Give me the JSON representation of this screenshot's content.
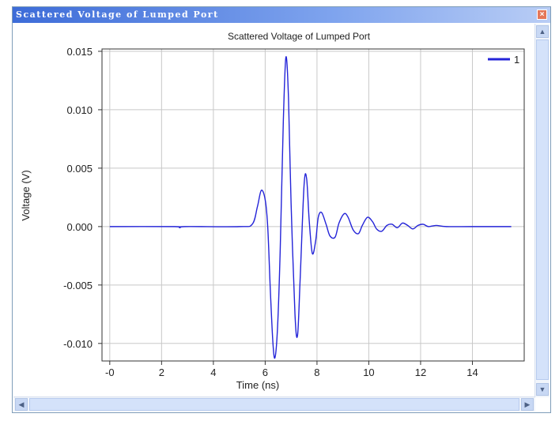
{
  "window": {
    "title": "Scattered Voltage of Lumped Port",
    "close_glyph": "×",
    "close_icon": "close-icon",
    "scroll_up_glyph": "▲",
    "scroll_down_glyph": "▼",
    "scroll_left_glyph": "◀",
    "scroll_right_glyph": "▶"
  },
  "chart_data": {
    "type": "line",
    "title": "Scattered Voltage of Lumped Port",
    "xlabel": "Time (ns)",
    "ylabel": "Voltage (V)",
    "xlim": [
      -0.3,
      16
    ],
    "ylim": [
      -0.0115,
      0.0152
    ],
    "xticks": [
      0,
      2,
      4,
      6,
      8,
      10,
      12,
      14
    ],
    "xtick_labels": [
      "-0",
      "2",
      "4",
      "6",
      "8",
      "10",
      "12",
      "14"
    ],
    "yticks": [
      0.015,
      0.01,
      0.005,
      0.0,
      -0.005,
      -0.01
    ],
    "ytick_labels": [
      "0.015",
      "0.010",
      "0.005",
      "0.000",
      "-0.005",
      "-0.010"
    ],
    "grid": true,
    "legend_position": "top-right",
    "series": [
      {
        "name": "1",
        "color": "#2424d8",
        "x": [
          0,
          2.5,
          2.7,
          2.9,
          5.0,
          5.5,
          5.7,
          5.85,
          6.0,
          6.1,
          6.2,
          6.3,
          6.38,
          6.48,
          6.58,
          6.7,
          6.8,
          6.9,
          7.0,
          7.15,
          7.25,
          7.35,
          7.5,
          7.6,
          7.7,
          7.82,
          7.95,
          8.05,
          8.18,
          8.35,
          8.5,
          8.7,
          8.85,
          9.05,
          9.2,
          9.4,
          9.6,
          9.75,
          9.95,
          10.15,
          10.3,
          10.5,
          10.7,
          10.9,
          11.1,
          11.3,
          11.5,
          11.7,
          11.9,
          12.1,
          12.3,
          12.6,
          13.0,
          14.0,
          15.5
        ],
        "y": [
          0.0,
          0.0,
          -0.0001,
          0.0,
          0.0,
          0.0002,
          0.0017,
          0.0031,
          0.0023,
          -0.0001,
          -0.0055,
          -0.01,
          -0.0112,
          -0.0085,
          -0.002,
          0.009,
          0.0145,
          0.011,
          0.002,
          -0.0075,
          -0.0093,
          -0.0045,
          0.0035,
          0.0041,
          0.0005,
          -0.0023,
          -0.0012,
          0.0008,
          0.0012,
          0.0002,
          -0.0008,
          -0.0009,
          0.0003,
          0.0011,
          0.0008,
          -0.0003,
          -0.0006,
          0.0001,
          0.0008,
          0.0004,
          -0.0002,
          -0.0004,
          0.0001,
          0.0002,
          -0.0001,
          0.0003,
          0.0001,
          -0.0002,
          0.0001,
          0.0002,
          0.0,
          0.0001,
          0.0,
          0.0,
          0.0
        ]
      }
    ]
  }
}
